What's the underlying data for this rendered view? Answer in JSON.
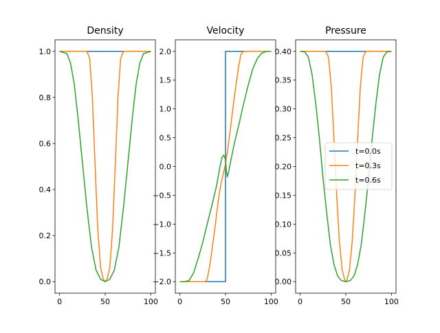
{
  "figure": {
    "legend_location": "center-right of Pressure panel"
  },
  "chart_data": [
    {
      "type": "line",
      "title": "Density",
      "xlim": [
        -5,
        105
      ],
      "ylim": [
        -0.05,
        1.05
      ],
      "xticks": [
        0,
        50,
        100
      ],
      "yticks": [
        0.0,
        0.2,
        0.4,
        0.6,
        0.8,
        1.0
      ],
      "ytick_labels": [
        "0.0",
        "0.2",
        "0.4",
        "0.6",
        "0.8",
        "1.0"
      ],
      "series": [
        {
          "name": "t=0.0s",
          "color": "#1f77b4",
          "x": [
            0,
            25,
            50,
            75,
            100
          ],
          "y": [
            1.0,
            1.0,
            1.0,
            1.0,
            1.0
          ]
        },
        {
          "name": "t=0.3s",
          "color": "#ff7f0e",
          "x": [
            0,
            30,
            33,
            36,
            39,
            42,
            45,
            48,
            50,
            52,
            55,
            58,
            61,
            64,
            67,
            70,
            100
          ],
          "y": [
            1.0,
            1.0,
            0.97,
            0.8,
            0.5,
            0.22,
            0.06,
            0.01,
            0.0,
            0.01,
            0.06,
            0.22,
            0.5,
            0.8,
            0.97,
            1.0,
            1.0
          ]
        },
        {
          "name": "t=0.6s",
          "color": "#2ca02c",
          "x": [
            0,
            8,
            12,
            16,
            20,
            25,
            30,
            35,
            40,
            45,
            50,
            55,
            60,
            65,
            70,
            75,
            80,
            84,
            88,
            92,
            100
          ],
          "y": [
            1.0,
            0.99,
            0.95,
            0.86,
            0.72,
            0.52,
            0.32,
            0.15,
            0.05,
            0.01,
            0.0,
            0.01,
            0.05,
            0.15,
            0.32,
            0.52,
            0.72,
            0.86,
            0.95,
            0.99,
            1.0
          ]
        }
      ]
    },
    {
      "type": "line",
      "title": "Velocity",
      "xlim": [
        -5,
        105
      ],
      "ylim": [
        -2.2,
        2.2
      ],
      "xticks": [
        0,
        50,
        100
      ],
      "yticks": [
        -2.0,
        -1.5,
        -1.0,
        -0.5,
        0.0,
        0.5,
        1.0,
        1.5,
        2.0
      ],
      "ytick_labels": [
        "−2.0",
        "−1.5",
        "−1.0",
        "−0.5",
        "0.0",
        "0.5",
        "1.0",
        "1.5",
        "2.0"
      ],
      "series": [
        {
          "name": "t=0.0s",
          "color": "#1f77b4",
          "x": [
            0,
            49,
            49,
            50,
            50,
            100
          ],
          "y": [
            -2.0,
            -2.0,
            -2.0,
            -2.0,
            2.0,
            2.0
          ]
        },
        {
          "name": "t=0.3s",
          "color": "#ff7f0e",
          "x": [
            0,
            28,
            30,
            33,
            36,
            39,
            42,
            45,
            48,
            50,
            52,
            55,
            58,
            61,
            64,
            67,
            70,
            72,
            100
          ],
          "y": [
            -2.0,
            -2.0,
            -1.95,
            -1.7,
            -1.35,
            -1.0,
            -0.6,
            -0.3,
            -0.1,
            0.05,
            0.25,
            0.6,
            1.0,
            1.35,
            1.7,
            1.95,
            2.0,
            2.0,
            2.0
          ]
        },
        {
          "name": "t=0.6s",
          "color": "#2ca02c",
          "x": [
            0,
            5,
            10,
            15,
            20,
            25,
            30,
            35,
            40,
            44,
            46,
            48,
            50,
            51,
            52,
            54,
            56,
            60,
            65,
            70,
            75,
            80,
            85,
            90,
            95,
            100
          ],
          "y": [
            -2.0,
            -2.0,
            -1.98,
            -1.85,
            -1.6,
            -1.32,
            -1.0,
            -0.68,
            -0.35,
            0.0,
            0.15,
            0.2,
            0.12,
            -0.08,
            -0.18,
            -0.05,
            0.12,
            0.42,
            0.75,
            1.1,
            1.42,
            1.7,
            1.88,
            1.97,
            2.0,
            2.0
          ]
        }
      ]
    },
    {
      "type": "line",
      "title": "Pressure",
      "xlim": [
        -5,
        105
      ],
      "ylim": [
        -0.02,
        0.42
      ],
      "xticks": [
        0,
        50,
        100
      ],
      "yticks": [
        0.0,
        0.05,
        0.1,
        0.15,
        0.2,
        0.25,
        0.3,
        0.35,
        0.4
      ],
      "ytick_labels": [
        "0.00",
        "0.05",
        "0.10",
        "0.15",
        "0.20",
        "0.25",
        "0.30",
        "0.35",
        "0.40"
      ],
      "series": [
        {
          "name": "t=0.0s",
          "color": "#1f77b4",
          "x": [
            0,
            25,
            50,
            75,
            100
          ],
          "y": [
            0.4,
            0.4,
            0.4,
            0.4,
            0.4
          ]
        },
        {
          "name": "t=0.3s",
          "color": "#ff7f0e",
          "x": [
            0,
            28,
            31,
            34,
            37,
            40,
            43,
            46,
            49,
            50,
            51,
            54,
            57,
            60,
            63,
            66,
            69,
            72,
            100
          ],
          "y": [
            0.4,
            0.4,
            0.39,
            0.34,
            0.25,
            0.15,
            0.07,
            0.02,
            0.002,
            0.0,
            0.002,
            0.02,
            0.07,
            0.15,
            0.25,
            0.34,
            0.39,
            0.4,
            0.4
          ]
        },
        {
          "name": "t=0.6s",
          "color": "#2ca02c",
          "x": [
            0,
            5,
            9,
            13,
            17,
            21,
            25,
            29,
            33,
            37,
            41,
            45,
            50,
            55,
            59,
            63,
            67,
            71,
            75,
            79,
            83,
            87,
            91,
            95,
            100
          ],
          "y": [
            0.4,
            0.399,
            0.39,
            0.36,
            0.31,
            0.25,
            0.18,
            0.12,
            0.065,
            0.03,
            0.01,
            0.002,
            0.0,
            0.002,
            0.01,
            0.03,
            0.065,
            0.12,
            0.18,
            0.25,
            0.31,
            0.36,
            0.39,
            0.399,
            0.4
          ]
        }
      ]
    }
  ],
  "legend": {
    "entries": [
      {
        "label": "t=0.0s",
        "color": "#1f77b4"
      },
      {
        "label": "t=0.3s",
        "color": "#ff7f0e"
      },
      {
        "label": "t=0.6s",
        "color": "#2ca02c"
      }
    ]
  }
}
